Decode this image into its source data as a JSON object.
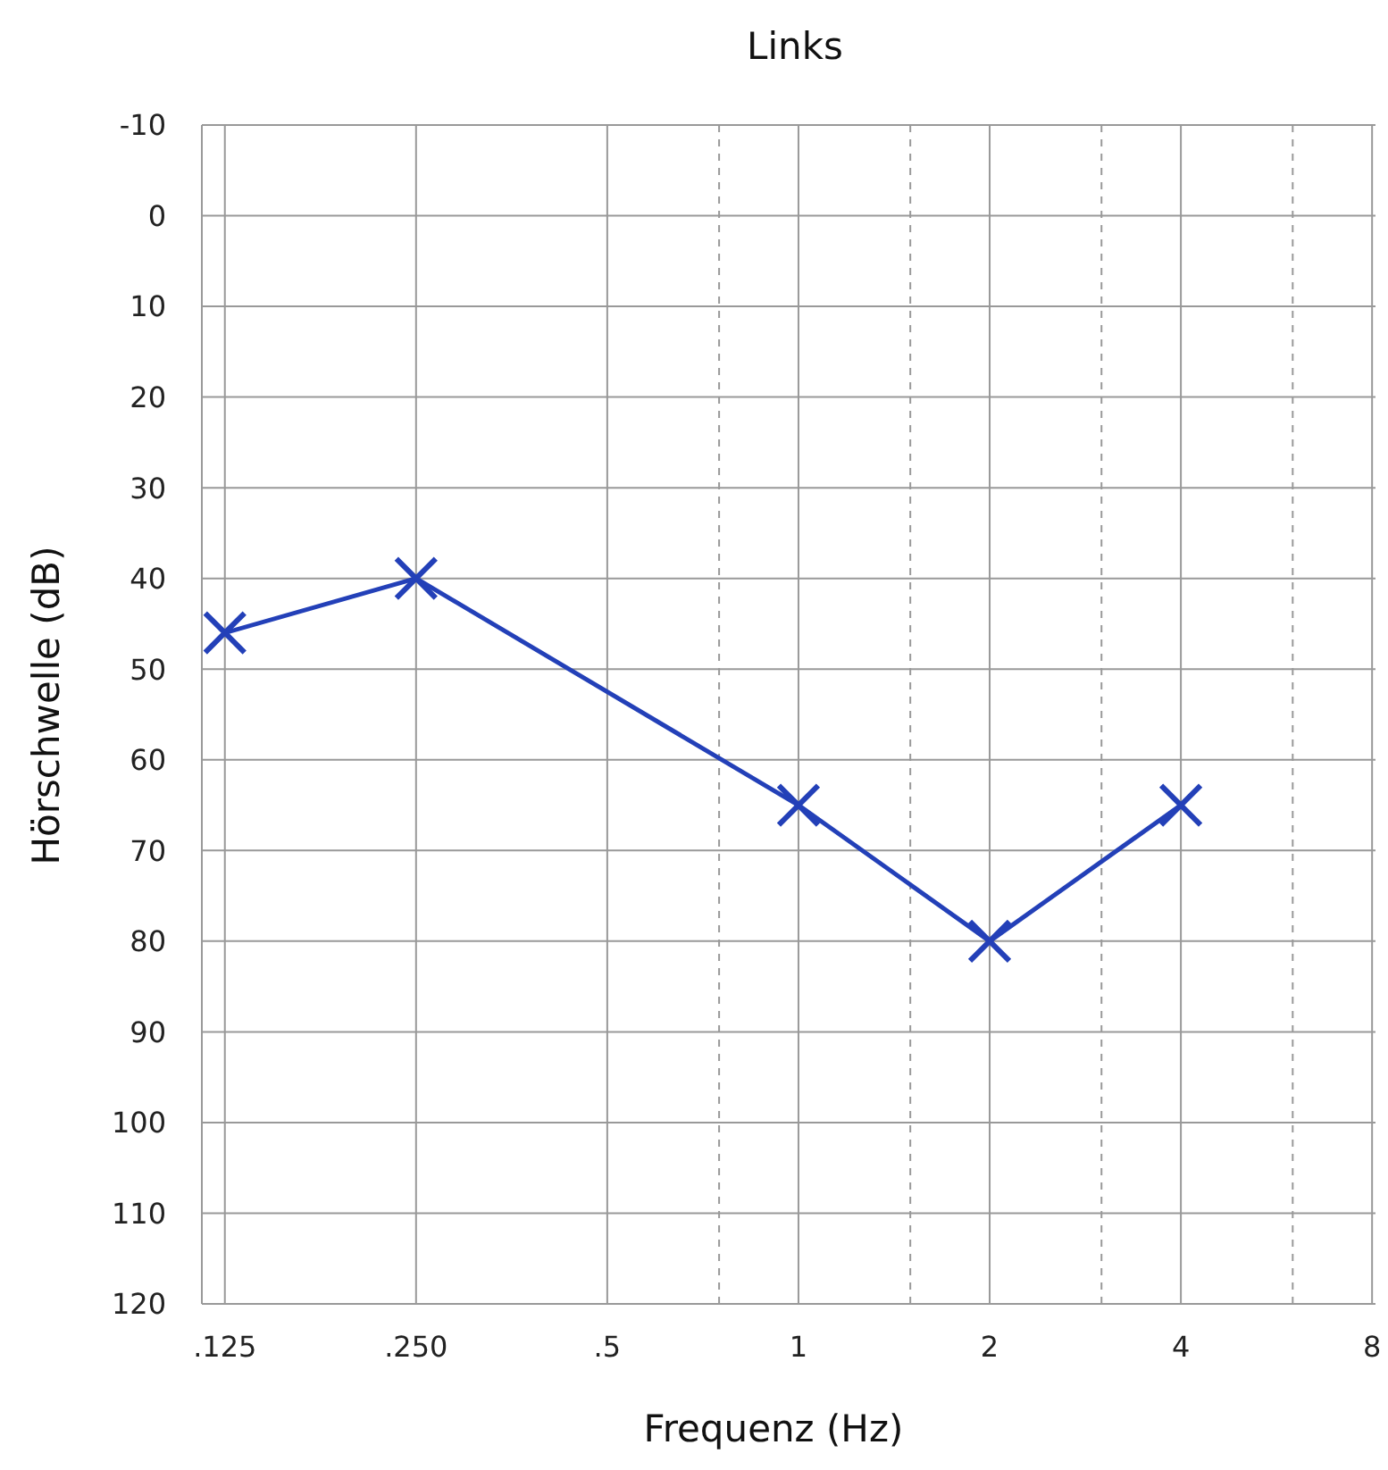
{
  "chart_data": {
    "type": "line",
    "title": "Links",
    "xlabel": "Frequenz (Hz)",
    "ylabel": "Hörschwelle (dB)",
    "x": [
      0.125,
      0.25,
      1,
      2,
      4
    ],
    "series": [
      {
        "color": "#2340b8",
        "values": [
          46,
          40,
          65,
          80,
          65
        ]
      }
    ],
    "marker": "cross",
    "line_style": "solid",
    "log": "x",
    "grid": true,
    "xlim": [
      0.115,
      8.1
    ],
    "xticks": [
      {
        "value": 0.125,
        "label": ".125"
      },
      {
        "value": 0.25,
        "label": ".250"
      },
      {
        "value": 0.5,
        "label": ".5"
      },
      {
        "value": 0.75,
        "label": null
      },
      1,
      {
        "value": 1.5,
        "label": null
      },
      2,
      {
        "value": 3,
        "label": null
      },
      4,
      {
        "value": 6,
        "label": null
      },
      8
    ],
    "ylim": [
      120,
      -10
    ],
    "yticks": [
      -10,
      0,
      10,
      20,
      30,
      40,
      50,
      60,
      70,
      80,
      90,
      100,
      110,
      120
    ]
  }
}
